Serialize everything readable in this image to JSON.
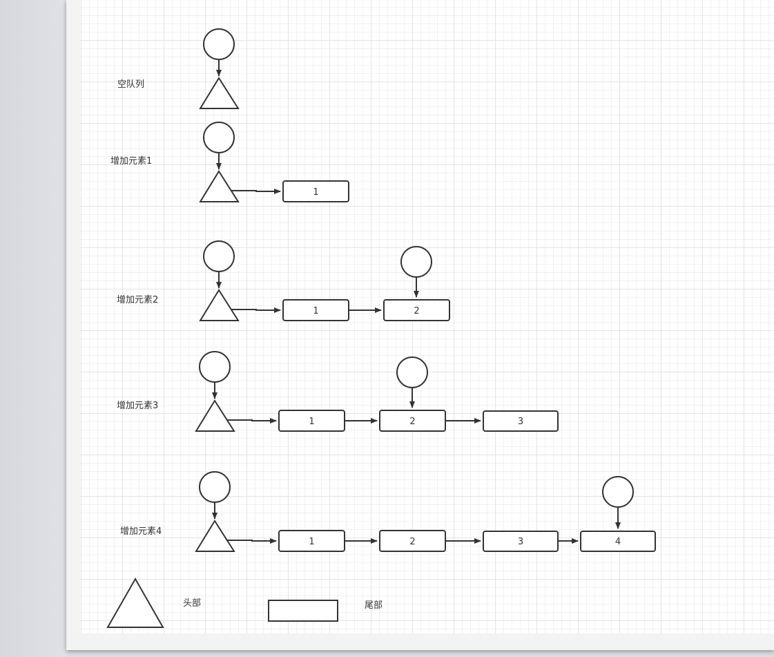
{
  "colors": {
    "stroke": "#333333",
    "text": "#333333",
    "grid_major": "#e3e3e3",
    "grid_minor": "#f1f1f1"
  },
  "rows": {
    "empty_queue": {
      "label": "空队列"
    },
    "add_1": {
      "label": "增加元素1",
      "nodes": [
        "1"
      ]
    },
    "add_2": {
      "label": "增加元素2",
      "nodes": [
        "1",
        "2"
      ]
    },
    "add_3": {
      "label": "增加元素3",
      "nodes": [
        "1",
        "2",
        "3"
      ]
    },
    "add_4": {
      "label": "增加元素4",
      "nodes": [
        "1",
        "2",
        "3",
        "4"
      ]
    }
  },
  "legend": {
    "head_label": "头部",
    "tail_label": "尾部"
  }
}
